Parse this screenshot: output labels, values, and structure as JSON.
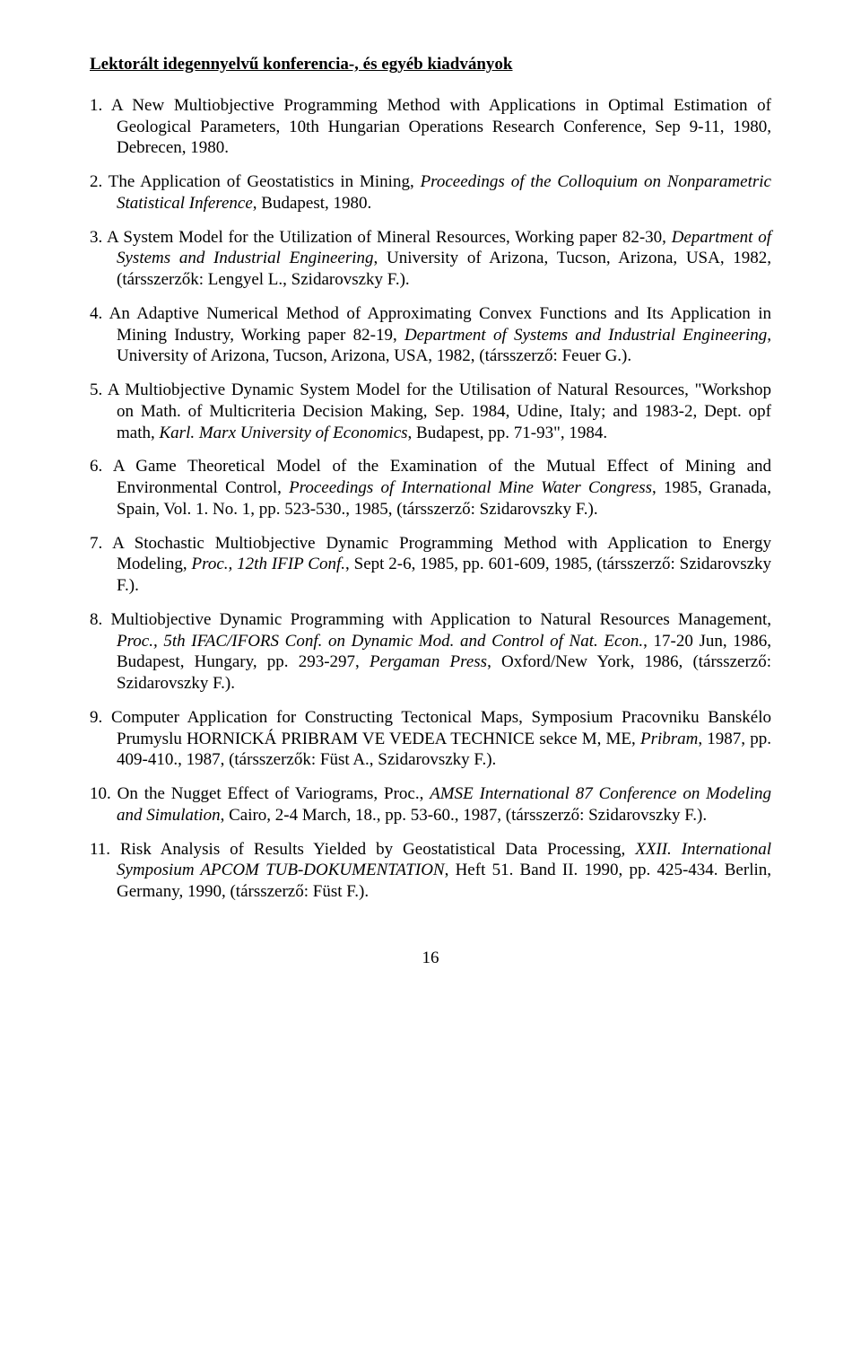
{
  "page": {
    "section_title": "Lektorált idegennyelvű konferencia-, és egyéb kiadványok",
    "page_number": "16",
    "text_color": "#000000",
    "background_color": "#ffffff",
    "font_family": "Times New Roman",
    "base_fontsize_pt": 14
  },
  "publications": [
    {
      "html": "A New Multiobjective Programming Method with Applications in Optimal Estimation of Geological Parameters, 10th Hungarian Operations Research Conference, Sep 9-11, 1980, Debrecen, 1980."
    },
    {
      "html": "The Application of Geostatistics in Mining, <i>Proceedings of the Colloquium on Nonparametric Statistical Inference</i>, Budapest, 1980."
    },
    {
      "html": "A System Model for the Utilization of Mineral Resources, Working paper 82-30, <i>Department of Systems and Industrial Engineering</i>, University of Arizona, Tucson, Arizona, USA, 1982, (társszerzők: Lengyel L., Szidarovszky F.)."
    },
    {
      "html": "An Adaptive Numerical Method of Approximating Convex Functions and Its Application in Mining Industry, Working paper 82-19, <i>Department of Systems and Industrial Engineering,</i> University of Arizona, Tucson, Arizona, USA, 1982, (társszerző: Feuer G.)."
    },
    {
      "html": "A Multiobjective Dynamic System Model for the Utilisation of Natural Resources, \"Workshop on Math. of Multicriteria Decision Making, Sep. 1984, Udine, Italy; and 1983-2, Dept. opf math, <i>Karl. Marx University of Economics</i>, Budapest, pp. 71-93\", 1984."
    },
    {
      "html": "A Game Theoretical Model of the Examination of the Mutual Effect of Mining and Environmental Control, <i>Proceedings of International Mine Water Congress</i>, 1985, Granada, Spain, Vol. 1. No. 1, pp. 523-530., 1985, (társszerző: Szidarovszky F.)."
    },
    {
      "html": "A Stochastic Multiobjective Dynamic Programming Method with Application to Energy Modeling, <i>Proc., 12th IFIP Conf.</i>, Sept 2-6, 1985, pp. 601-609, 1985, (társszerző: Szidarovszky F.)."
    },
    {
      "html": "Multiobjective Dynamic Programming with Application to Natural Resources Management, <i>Proc., 5th IFAC/IFORS Conf. on Dynamic Mod. and Control of Nat. Econ.</i>, 17-20 Jun, 1986, Budapest, Hungary, pp. 293-297, <i>Pergaman Press</i>, Oxford/New York, 1986, (társszerző: Szidarovszky F.)."
    },
    {
      "html": "Computer Application for Constructing Tectonical Maps, Symposium Pracovniku Banskélo Prumyslu HORNICKÁ PRIBRAM VE VEDEA TECHNICE sekce M, ME, <i>Pribram</i>, 1987, pp. 409-410., 1987, (társszerzők: Füst A., Szidarovszky F.)."
    },
    {
      "html": "On the Nugget Effect of Variograms, Proc., <i>AMSE International 87 Conference on Modeling and Simulation</i>, Cairo, 2-4 March, 18., pp. 53-60., 1987, (társszerző: Szidarovszky F.)."
    },
    {
      "html": "Risk Analysis of Results Yielded by Geostatistical Data Processing, <i>XXII. International Symposium APCOM TUB-DOKUMENTATION</i>, Heft 51. Band II. 1990, pp. 425-434. Berlin, Germany, 1990, (társszerző: Füst F.)."
    }
  ]
}
